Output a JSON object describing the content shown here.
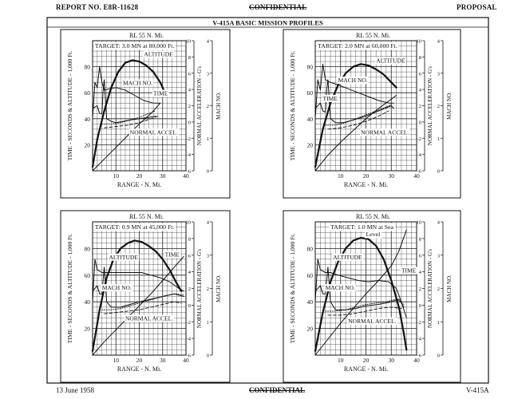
{
  "header": {
    "report_no": "REPORT NO. E8R-11628",
    "classification": "CONFIDENTIAL",
    "status": "PROPOSAL"
  },
  "figure_title": "V-415A BASIC MISSION PROFILES",
  "footer": {
    "date": "13 June 1958",
    "classification": "CONFIDENTIAL",
    "model": "V-415A"
  },
  "chart_data": [
    {
      "type": "line",
      "range_label": "RL   55 N. Mi.",
      "target": [
        "TARGET: 3.0 MN at 80,000 Ft."
      ],
      "xlabel": "RANGE - N. Mi.",
      "ylabel_left": "TIME - SECONDS & ALTITUDE - 1,000 Ft.",
      "ylabel_accel": "NORMAL ACCELERATION - G's",
      "ylabel_mach": "MACH NO.",
      "xlim": [
        0,
        40
      ],
      "ylim": [
        0,
        100
      ],
      "accel_lim": [
        -6,
        10
      ],
      "mach_lim": [
        0,
        4
      ],
      "x_ticks": [
        "10",
        "20",
        "30",
        "40"
      ],
      "y_ticks": [
        "20",
        "40",
        "60",
        "80"
      ],
      "accel_ticks": [
        "-6",
        "-4",
        "-2",
        "0",
        "2",
        "4",
        "6",
        "8",
        "10"
      ],
      "mach_ticks": [
        "0",
        "1",
        "2",
        "3",
        "4"
      ],
      "series": [
        {
          "name": "ALTITUDE",
          "style": "heavy",
          "x": [
            0,
            2,
            5,
            8,
            11,
            14,
            17,
            20,
            23,
            26,
            29,
            31
          ],
          "y": [
            3,
            24,
            46,
            64,
            76,
            83,
            85,
            84,
            81,
            76,
            68,
            60
          ]
        },
        {
          "name": "MACH NO.",
          "style": "solid",
          "x": [
            0,
            1,
            2,
            3,
            4,
            5,
            7,
            10,
            14,
            18,
            22,
            26,
            29
          ],
          "y": [
            40,
            68,
            64,
            80,
            68,
            62,
            63,
            64,
            62,
            58,
            54,
            52,
            52
          ]
        },
        {
          "name": "TIME",
          "style": "solid",
          "x": [
            0,
            5,
            10,
            15,
            20,
            25,
            29
          ],
          "y": [
            0,
            9,
            18,
            27,
            36,
            44,
            52
          ]
        },
        {
          "name": "NORMAL ACCEL.",
          "style": "solid",
          "x": [
            0,
            2,
            3,
            4,
            4.5,
            5,
            6,
            8,
            10,
            13,
            16,
            20,
            24,
            27
          ],
          "y": [
            48,
            50,
            44,
            44,
            62,
            70,
            40,
            38,
            37,
            38,
            39,
            40,
            41,
            42
          ]
        },
        {
          "name": "",
          "style": "dotted",
          "x": [
            4,
            8,
            12,
            16,
            20,
            24,
            27
          ],
          "y": [
            36,
            36,
            37,
            39,
            41,
            44,
            46
          ]
        },
        {
          "name": "",
          "style": "dashed",
          "x": [
            5,
            10,
            15,
            20,
            25,
            28
          ],
          "y": [
            33,
            34,
            35,
            37,
            40,
            42
          ]
        }
      ]
    },
    {
      "type": "line",
      "range_label": "RL   55 N. Mi.",
      "target": [
        "TARGET: 2.0 MN at 60,000 Ft."
      ],
      "xlabel": "RANGE - N. Mi.",
      "ylabel_left": "TIME - SECONDS & ALTITUDE - 1,000 Ft.",
      "ylabel_accel": "NORMAL ACCELERATION - G's",
      "ylabel_mach": "MACH NO.",
      "xlim": [
        0,
        40
      ],
      "ylim": [
        0,
        100
      ],
      "accel_lim": [
        -6,
        10
      ],
      "mach_lim": [
        0,
        4
      ],
      "x_ticks": [
        "10",
        "20",
        "30",
        "40"
      ],
      "y_ticks": [
        "20",
        "40",
        "60",
        "80"
      ],
      "accel_ticks": [
        "-6",
        "-4",
        "-2",
        "0",
        "2",
        "4",
        "6",
        "8",
        "10"
      ],
      "mach_ticks": [
        "0",
        "1",
        "2",
        "3",
        "4"
      ],
      "series": [
        {
          "name": "ALTITUDE",
          "style": "heavy",
          "x": [
            0,
            3,
            6,
            9,
            12,
            15,
            18,
            21,
            24,
            27,
            30,
            32
          ],
          "y": [
            3,
            32,
            52,
            66,
            75,
            80,
            82,
            81,
            78,
            74,
            68,
            64
          ]
        },
        {
          "name": "MACH NO.",
          "style": "solid",
          "x": [
            0,
            1,
            2,
            3,
            4,
            6,
            9,
            13,
            17,
            21,
            25,
            29,
            31
          ],
          "y": [
            40,
            70,
            62,
            82,
            70,
            68,
            66,
            63,
            60,
            57,
            54,
            52,
            52
          ]
        },
        {
          "name": "TIME",
          "style": "solid",
          "x": [
            0,
            5,
            10,
            15,
            20,
            25,
            30,
            32
          ],
          "y": [
            0,
            12,
            22,
            31,
            40,
            48,
            55,
            58
          ]
        },
        {
          "name": "NORMAL ACCEL.",
          "style": "solid",
          "x": [
            0,
            2,
            3,
            4,
            4.5,
            5,
            6,
            8,
            11,
            15,
            20,
            25,
            30,
            31
          ],
          "y": [
            48,
            52,
            46,
            45,
            62,
            70,
            40,
            37,
            37,
            39,
            42,
            46,
            50,
            48
          ]
        },
        {
          "name": "",
          "style": "dotted",
          "x": [
            4,
            8,
            12,
            16,
            20,
            24,
            28,
            30
          ],
          "y": [
            35,
            35,
            37,
            40,
            43,
            46,
            49,
            51
          ]
        },
        {
          "name": "",
          "style": "dashed",
          "x": [
            5,
            10,
            15,
            20,
            25,
            29
          ],
          "y": [
            32,
            33,
            35,
            38,
            42,
            46
          ]
        }
      ]
    },
    {
      "type": "line",
      "range_label": "RL   55 N. Mi.",
      "target": [
        "TARGET: 0.9 MN at 45,000 Ft."
      ],
      "xlabel": "RANGE - N. Mi.",
      "ylabel_left": "TIME - SECONDS & ALTITUDE - 1,000 Ft.",
      "ylabel_accel": "NORMAL ACCELERATION - G's",
      "ylabel_mach": "MACH NO.",
      "xlim": [
        0,
        40
      ],
      "ylim": [
        0,
        100
      ],
      "accel_lim": [
        -6,
        10
      ],
      "mach_lim": [
        0,
        4
      ],
      "x_ticks": [
        "10",
        "20",
        "30",
        "40"
      ],
      "y_ticks": [
        "20",
        "40",
        "60",
        "80"
      ],
      "accel_ticks": [
        "-6",
        "-4",
        "-2",
        "0",
        "2",
        "4",
        "6",
        "8",
        "10"
      ],
      "mach_ticks": [
        "0",
        "1",
        "2",
        "3",
        "4"
      ],
      "series": [
        {
          "name": "ALTITUDE",
          "style": "heavy",
          "x": [
            0,
            3,
            6,
            9,
            12,
            15,
            18,
            21,
            24,
            27,
            30,
            33,
            36,
            38
          ],
          "y": [
            3,
            34,
            58,
            72,
            80,
            84,
            86,
            85,
            82,
            78,
            72,
            64,
            54,
            48
          ]
        },
        {
          "name": "MACH NO.",
          "style": "solid",
          "x": [
            0,
            1,
            2,
            4,
            6,
            9,
            13,
            17,
            21,
            25,
            29,
            33,
            37,
            39
          ],
          "y": [
            40,
            72,
            64,
            62,
            62,
            62,
            62,
            62,
            62,
            60,
            58,
            55,
            50,
            48
          ]
        },
        {
          "name": "TIME",
          "style": "solid",
          "x": [
            0,
            5,
            10,
            15,
            20,
            25,
            30,
            35,
            39
          ],
          "y": [
            0,
            10,
            19,
            28,
            37,
            46,
            56,
            66,
            74
          ]
        },
        {
          "name": "NORMAL ACCEL.",
          "style": "solid",
          "x": [
            0,
            2,
            3,
            4,
            5,
            6,
            8,
            12,
            16,
            20,
            25,
            30,
            35,
            39
          ],
          "y": [
            48,
            52,
            46,
            46,
            66,
            40,
            36,
            36,
            38,
            40,
            42,
            44,
            46,
            44
          ]
        },
        {
          "name": "",
          "style": "dotted",
          "x": [
            4,
            8,
            12,
            16,
            20,
            24,
            28,
            32,
            36,
            39
          ],
          "y": [
            34,
            34,
            35,
            37,
            39,
            41,
            43,
            45,
            46,
            45
          ]
        },
        {
          "name": "",
          "style": "dashed",
          "x": [
            5,
            10,
            15,
            20,
            25,
            30,
            35,
            38
          ],
          "y": [
            31,
            32,
            33,
            34,
            36,
            38,
            40,
            39
          ]
        }
      ]
    },
    {
      "type": "line",
      "range_label": "RL   55 N. Mi.",
      "target": [
        "TARGET: 1.0 MN at Sea",
        "Level"
      ],
      "xlabel": "RANGE - N. Mi.",
      "ylabel_left": "TIME - SECONDS & ALTITUDE - 1,000 Ft.",
      "ylabel_accel": "NORMAL ACCELERATION - G's",
      "ylabel_mach": "MACH NO.",
      "xlim": [
        0,
        40
      ],
      "ylim": [
        0,
        100
      ],
      "accel_lim": [
        -6,
        10
      ],
      "mach_lim": [
        0,
        4
      ],
      "x_ticks": [
        "10",
        "20",
        "30",
        "40"
      ],
      "y_ticks": [
        "20",
        "40",
        "60",
        "80"
      ],
      "accel_ticks": [
        "-6",
        "-4",
        "-2",
        "0",
        "2",
        "4",
        "6",
        "8",
        "10"
      ],
      "mach_ticks": [
        "0",
        "1",
        "2",
        "3",
        "4"
      ],
      "series": [
        {
          "name": "ALTITUDE",
          "style": "heavy",
          "x": [
            0,
            3,
            6,
            9,
            12,
            15,
            18,
            21,
            24,
            27,
            30,
            33,
            35,
            36
          ],
          "y": [
            3,
            32,
            55,
            70,
            80,
            86,
            88,
            87,
            82,
            72,
            56,
            36,
            16,
            4
          ]
        },
        {
          "name": "MACH NO.",
          "style": "solid",
          "x": [
            0,
            1,
            2,
            4,
            6,
            9,
            13,
            17,
            21,
            25,
            29,
            32,
            34,
            36
          ],
          "y": [
            40,
            72,
            64,
            62,
            62,
            60,
            58,
            56,
            55,
            56,
            55,
            50,
            40,
            28
          ]
        },
        {
          "name": "TIME",
          "style": "solid",
          "x": [
            0,
            5,
            10,
            15,
            20,
            25,
            30,
            33,
            36
          ],
          "y": [
            0,
            12,
            24,
            35,
            46,
            56,
            67,
            78,
            94
          ]
        },
        {
          "name": "NORMAL ACCEL.",
          "style": "solid",
          "x": [
            0,
            2,
            3,
            4,
            5,
            6,
            8,
            12,
            16,
            20,
            25,
            30,
            33,
            35
          ],
          "y": [
            48,
            52,
            46,
            46,
            66,
            40,
            34,
            34,
            35,
            37,
            38,
            40,
            42,
            36
          ]
        },
        {
          "name": "",
          "style": "dotted",
          "x": [
            4,
            8,
            12,
            16,
            20,
            24,
            28,
            32,
            35
          ],
          "y": [
            33,
            33,
            34,
            36,
            38,
            39,
            40,
            42,
            38
          ]
        },
        {
          "name": "",
          "style": "dashed",
          "x": [
            5,
            10,
            15,
            20,
            25,
            30,
            34
          ],
          "y": [
            30,
            30,
            31,
            33,
            35,
            36,
            35
          ]
        }
      ]
    }
  ]
}
